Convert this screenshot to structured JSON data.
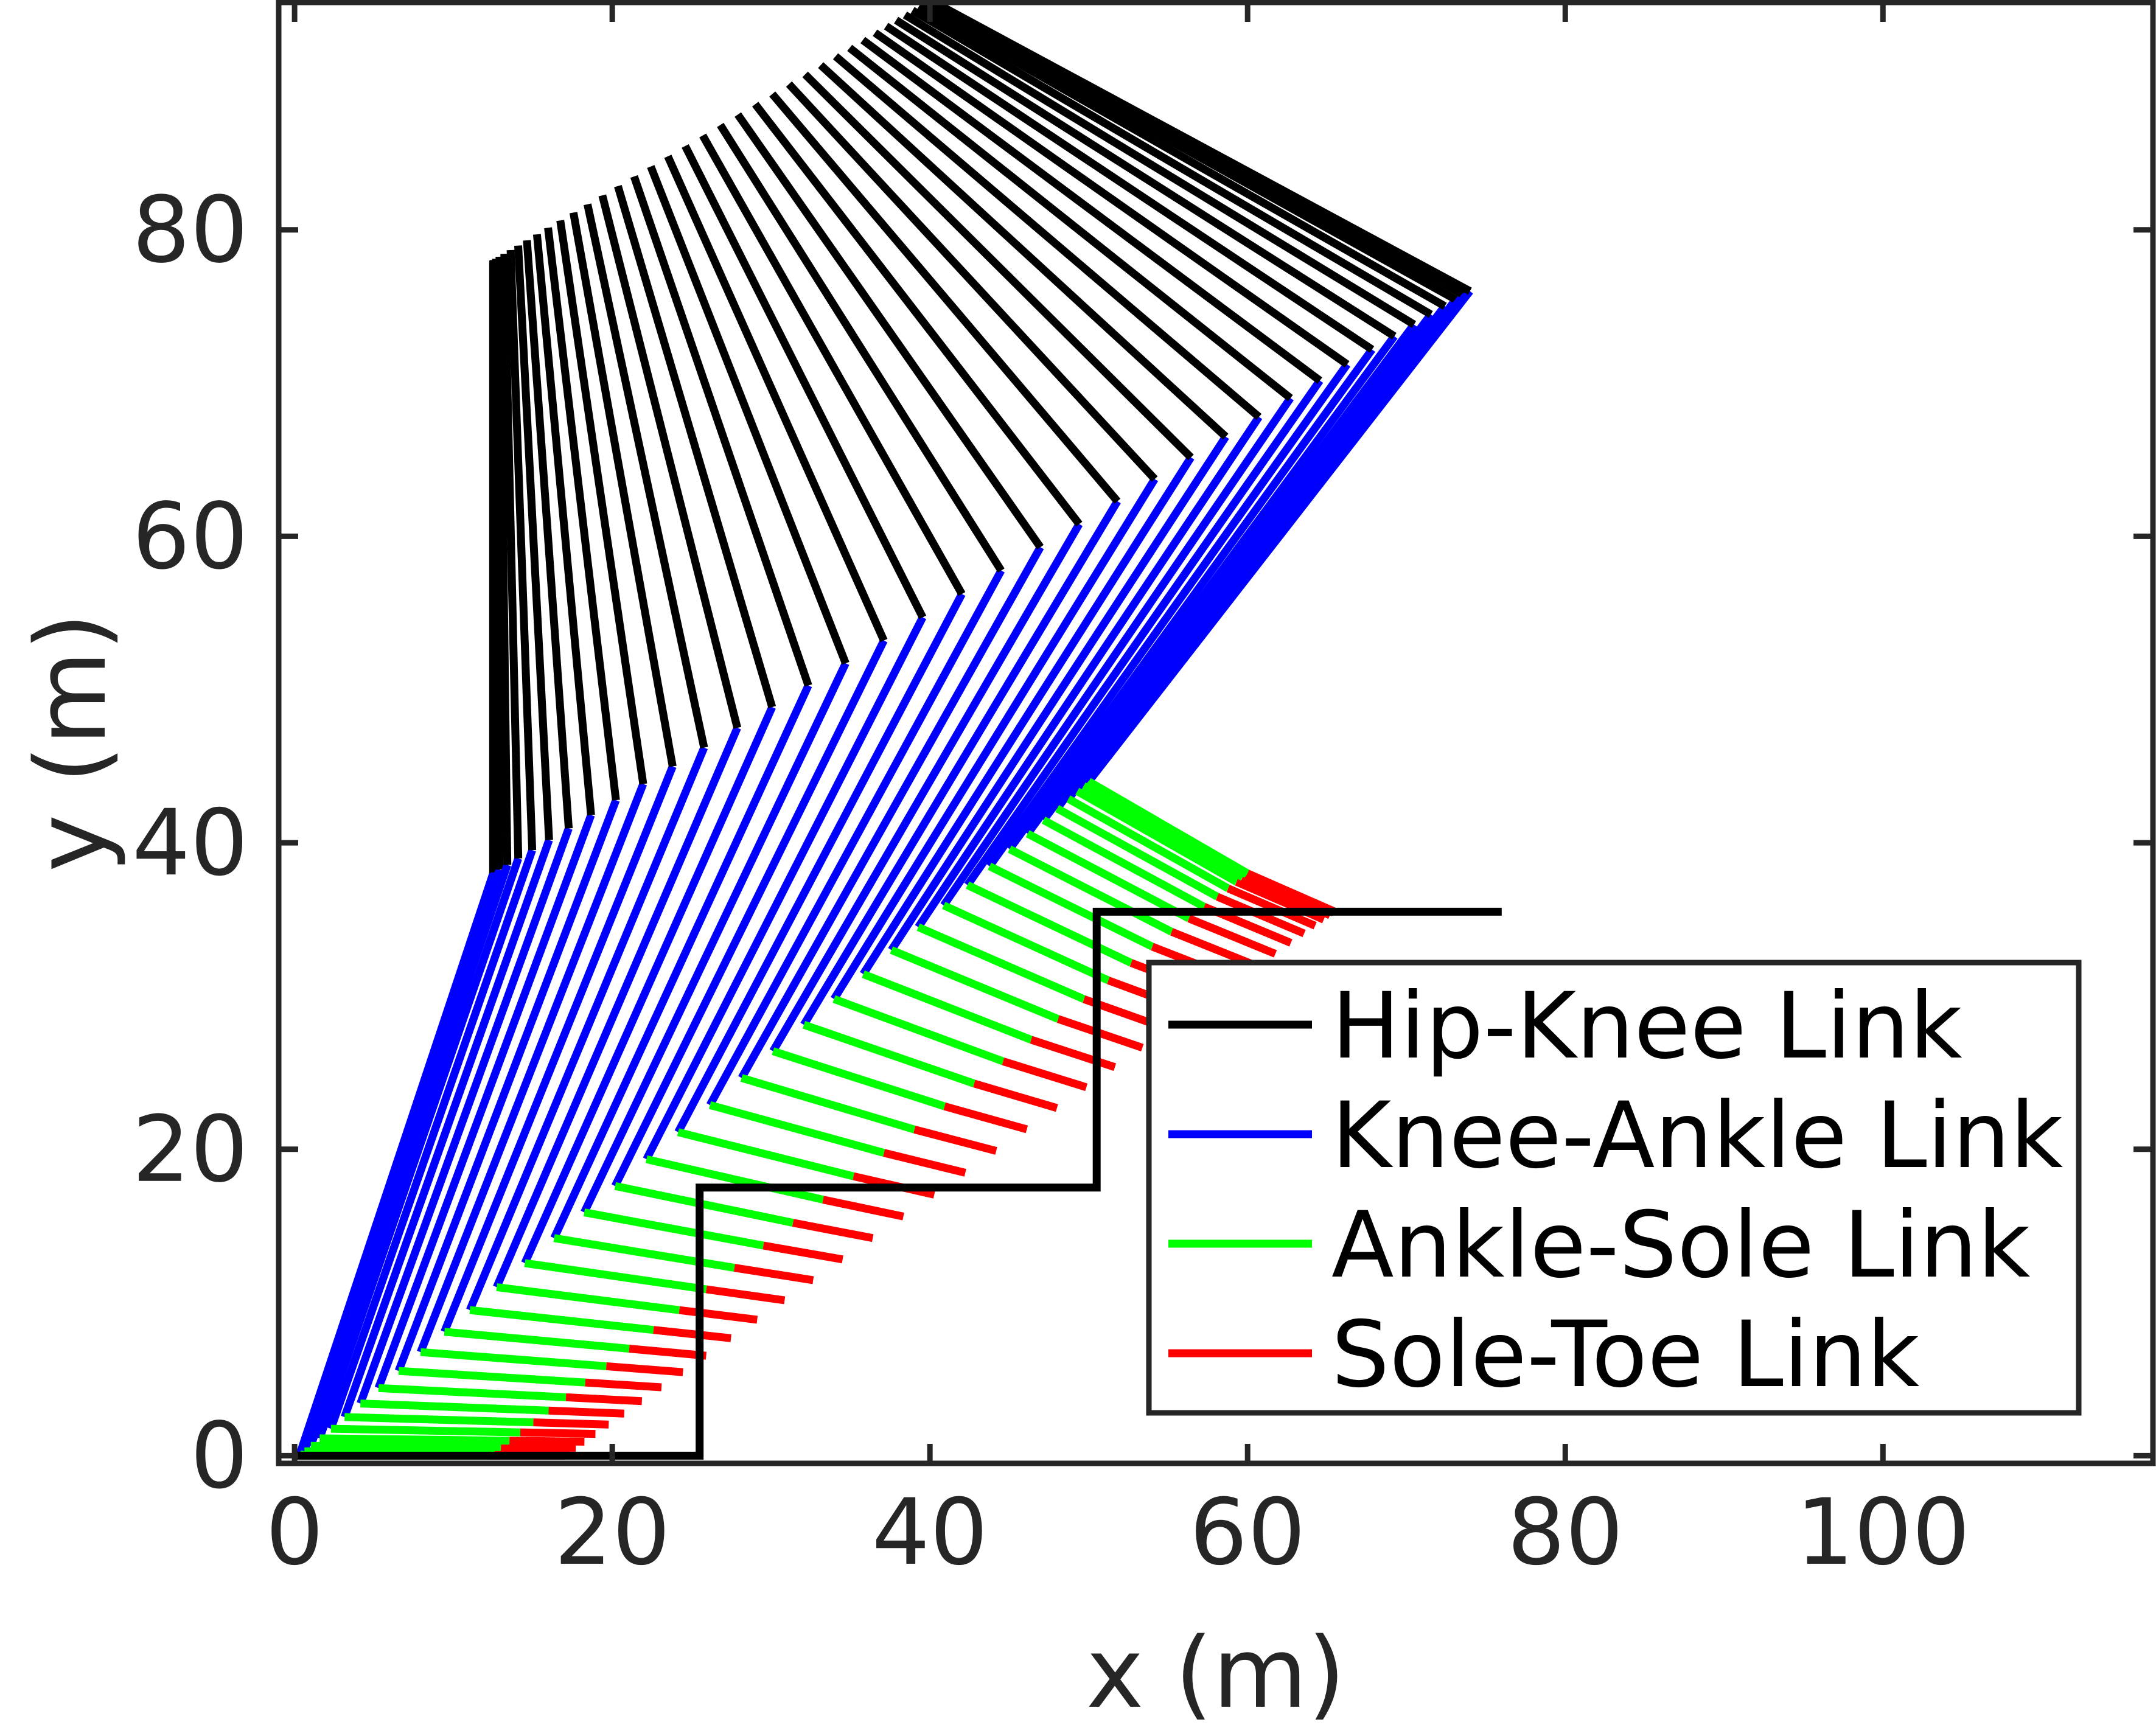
{
  "chart_data": {
    "type": "line",
    "title": "",
    "xlabel": "x (m)",
    "ylabel": "y (m)",
    "xlim": [
      -1,
      117
    ],
    "ylim": [
      -0.5,
      95
    ],
    "xticks": [
      0,
      20,
      40,
      60,
      80,
      100
    ],
    "yticks": [
      0,
      20,
      40,
      60,
      80
    ],
    "xtick_labels": [
      "0",
      "20",
      "40",
      "60",
      "80",
      "100"
    ],
    "ytick_labels": [
      "0",
      "20",
      "40",
      "60",
      "80"
    ],
    "grid": false,
    "legend_position": "bottom-right",
    "frames": 40,
    "frame_interpolation": "ease-in-out",
    "start_pose": {
      "hip": [
        12.5,
        78
      ],
      "knee": [
        12.5,
        38
      ],
      "ankle": [
        0.3,
        0
      ],
      "sole": [
        12.3,
        0
      ],
      "toe": [
        17,
        0
      ]
    },
    "end_pose": {
      "hip": [
        40,
        95
      ],
      "knee": [
        74,
        76
      ],
      "ankle": [
        50,
        44
      ],
      "sole": [
        60,
        38
      ],
      "toe": [
        65.5,
        35.5
      ]
    },
    "terrain": {
      "name": "Stairs",
      "color": "#000000",
      "x": [
        0,
        25.5,
        25.5,
        50.5,
        50.5,
        76
      ],
      "y": [
        0,
        0,
        17.5,
        17.5,
        35.5,
        35.5
      ]
    },
    "series": [
      {
        "name": "Hip-Knee Link",
        "color": "#000000",
        "from": "hip",
        "to": "knee"
      },
      {
        "name": "Knee-Ankle Link",
        "color": "#0000ff",
        "from": "knee",
        "to": "ankle"
      },
      {
        "name": "Ankle-Sole Link",
        "color": "#00ff00",
        "from": "ankle",
        "to": "sole"
      },
      {
        "name": "Sole-Toe Link",
        "color": "#ff0000",
        "from": "sole",
        "to": "toe"
      }
    ]
  }
}
